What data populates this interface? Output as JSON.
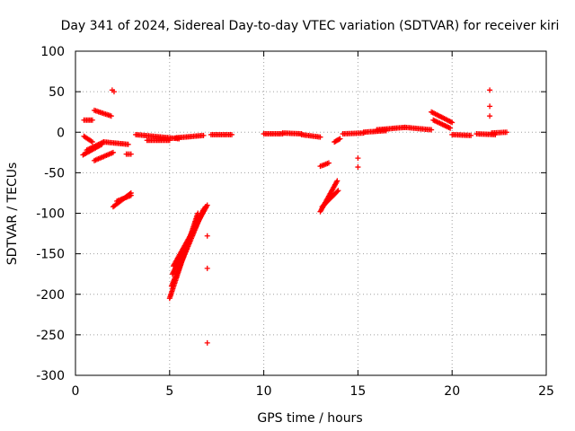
{
  "chart_data": {
    "type": "scatter",
    "title": "Day 341 of 2024, Sidereal Day-to-day VTEC variation (SDTVAR) for receiver kiri",
    "xlabel": "GPS time / hours",
    "ylabel": "SDTVAR / TECUs",
    "xlim": [
      0,
      25
    ],
    "ylim": [
      -300,
      100
    ],
    "xticks": [
      0,
      5,
      10,
      15,
      20,
      25
    ],
    "yticks": [
      -300,
      -250,
      -200,
      -150,
      -100,
      -50,
      0,
      50,
      100
    ],
    "grid": true,
    "marker": "plus",
    "color": "#ff0000",
    "segments": [
      {
        "x0": 0.45,
        "y0": 15,
        "x1": 0.9,
        "y1": 15
      },
      {
        "x0": 1.0,
        "y0": 27,
        "x1": 1.9,
        "y1": 20
      },
      {
        "x0": 0.45,
        "y0": -5,
        "x1": 0.9,
        "y1": -12
      },
      {
        "x0": 0.4,
        "y0": -28,
        "x1": 1.4,
        "y1": -15
      },
      {
        "x0": 0.6,
        "y0": -22,
        "x1": 1.5,
        "y1": -12
      },
      {
        "x0": 1.0,
        "y0": -35,
        "x1": 2.0,
        "y1": -25
      },
      {
        "x0": 1.5,
        "y0": -12,
        "x1": 2.8,
        "y1": -15
      },
      {
        "x0": 2.0,
        "y0": -92,
        "x1": 2.95,
        "y1": -75
      },
      {
        "x0": 2.2,
        "y0": -85,
        "x1": 2.95,
        "y1": -78
      },
      {
        "x0": 2.7,
        "y0": -27,
        "x1": 2.95,
        "y1": -27
      },
      {
        "x0": 3.2,
        "y0": -3,
        "x1": 5.5,
        "y1": -8
      },
      {
        "x0": 3.8,
        "y0": -10,
        "x1": 5.0,
        "y1": -10
      },
      {
        "x0": 5.3,
        "y0": -7,
        "x1": 6.8,
        "y1": -4
      },
      {
        "x0": 7.2,
        "y0": -3,
        "x1": 8.3,
        "y1": -3
      },
      {
        "x0": 5.0,
        "y0": -205,
        "x1": 6.5,
        "y1": -100
      },
      {
        "x0": 5.1,
        "y0": -190,
        "x1": 6.8,
        "y1": -95
      },
      {
        "x0": 5.15,
        "y0": -175,
        "x1": 6.9,
        "y1": -92
      },
      {
        "x0": 5.2,
        "y0": -165,
        "x1": 7.0,
        "y1": -90
      },
      {
        "x0": 10.0,
        "y0": -2,
        "x1": 11.0,
        "y1": -2
      },
      {
        "x0": 11.0,
        "y0": -1,
        "x1": 12.0,
        "y1": -2
      },
      {
        "x0": 12.0,
        "y0": -3,
        "x1": 13.0,
        "y1": -6
      },
      {
        "x0": 13.0,
        "y0": -42,
        "x1": 13.45,
        "y1": -38
      },
      {
        "x0": 13.0,
        "y0": -98,
        "x1": 13.9,
        "y1": -60
      },
      {
        "x0": 13.1,
        "y0": -92,
        "x1": 13.95,
        "y1": -72
      },
      {
        "x0": 13.75,
        "y0": -12,
        "x1": 14.05,
        "y1": -8
      },
      {
        "x0": 14.2,
        "y0": -2,
        "x1": 15.3,
        "y1": -1
      },
      {
        "x0": 15.3,
        "y0": 0,
        "x1": 16.5,
        "y1": 2
      },
      {
        "x0": 16.0,
        "y0": 3,
        "x1": 17.5,
        "y1": 6
      },
      {
        "x0": 17.5,
        "y0": 6,
        "x1": 18.9,
        "y1": 3
      },
      {
        "x0": 18.9,
        "y0": 25,
        "x1": 20.0,
        "y1": 12
      },
      {
        "x0": 19.0,
        "y0": 15,
        "x1": 19.9,
        "y1": 5
      },
      {
        "x0": 20.0,
        "y0": -3,
        "x1": 21.0,
        "y1": -4
      },
      {
        "x0": 21.3,
        "y0": -2,
        "x1": 22.3,
        "y1": -3
      },
      {
        "x0": 22.1,
        "y0": -1,
        "x1": 22.9,
        "y1": 0
      }
    ],
    "isolated_points": [
      {
        "x": 1.95,
        "y": 52
      },
      {
        "x": 2.05,
        "y": 50
      },
      {
        "x": 22.0,
        "y": 52
      },
      {
        "x": 22.0,
        "y": 32
      },
      {
        "x": 22.0,
        "y": 20
      },
      {
        "x": 7.0,
        "y": -128
      },
      {
        "x": 7.0,
        "y": -168
      },
      {
        "x": 7.0,
        "y": -260
      },
      {
        "x": 15.0,
        "y": -32
      },
      {
        "x": 15.0,
        "y": -43
      }
    ]
  }
}
